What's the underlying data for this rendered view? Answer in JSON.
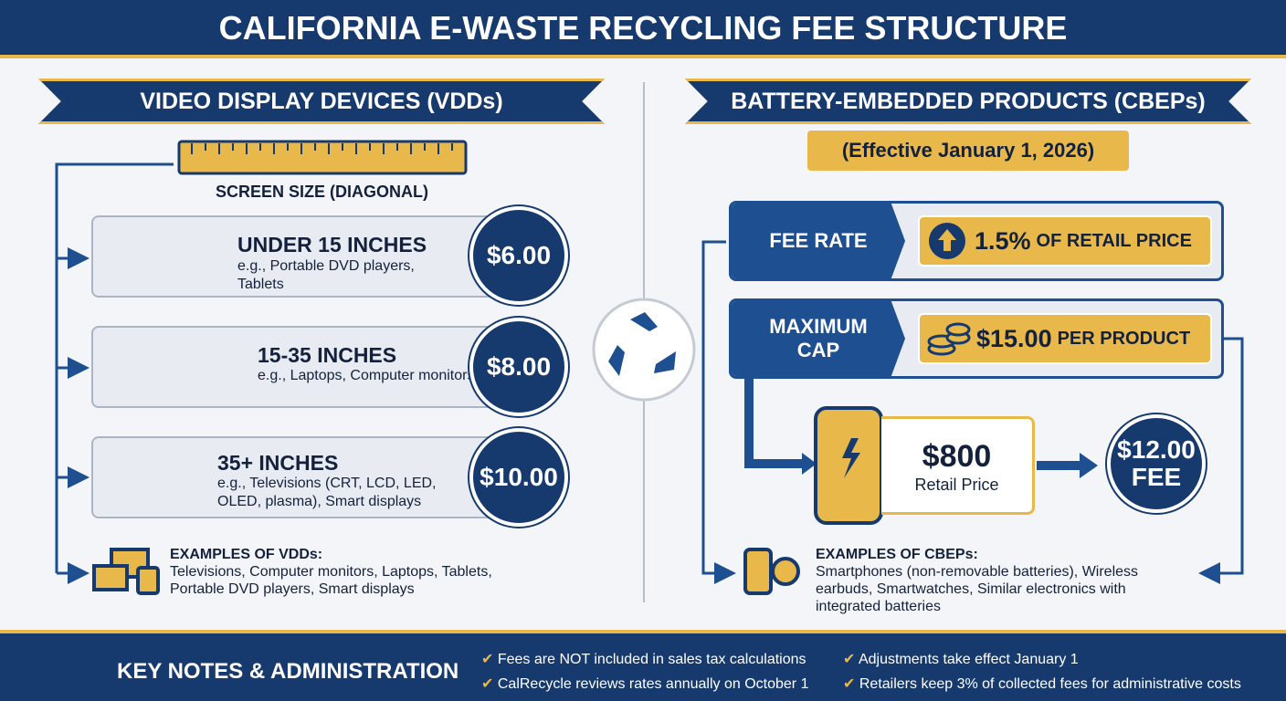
{
  "header": {
    "title": "CALIFORNIA E-WASTE RECYCLING FEE STRUCTURE"
  },
  "left": {
    "heading": "VIDEO DISPLAY DEVICES (VDDs)",
    "ruler_label": "SCREEN SIZE (DIAGONAL)",
    "tiers": [
      {
        "size": "UNDER 15 INCHES",
        "examples": "e.g.,  Portable DVD players, Tablets",
        "fee": "$6.00"
      },
      {
        "size": "15-35 INCHES",
        "examples": "e.g., Laptops, Computer monitors",
        "fee": "$8.00"
      },
      {
        "size": "35+ INCHES",
        "examples": "e.g., Televisions (CRT, LCD, LED, OLED, plasma), Smart displays",
        "fee": "$10.00"
      }
    ],
    "examples": {
      "title": "EXAMPLES OF VDDs:",
      "text": "Televisions, Computer monitors, Laptops, Tablets, Portable DVD players, Smart displays"
    }
  },
  "right": {
    "heading": "BATTERY-EMBEDDED PRODUCTS (CBEPs)",
    "effective": "(Effective January 1, 2026)",
    "fee_rate": {
      "label": "FEE RATE",
      "value": "1.5%",
      "suffix": "OF RETAIL PRICE"
    },
    "cap": {
      "label": "MAXIMUM CAP",
      "value": "$15.00",
      "suffix": "PER PRODUCT"
    },
    "example": {
      "price": "$800",
      "price_label": "Retail Price",
      "fee": "$12.00",
      "fee_label": "FEE"
    },
    "examples": {
      "title": "EXAMPLES OF CBEPs:",
      "text": "Smartphones (non-removable batteries), Wireless earbuds, Smartwatches, Similar electronics with integrated batteries"
    }
  },
  "footer": {
    "title": "KEY NOTES & ADMINISTRATION",
    "notes": [
      "Fees are NOT included in sales tax calculations",
      "CalRecycle reviews rates annually on October 1",
      "Adjustments take effect January 1",
      "Retailers keep 3% of collected fees for administrative costs"
    ]
  }
}
